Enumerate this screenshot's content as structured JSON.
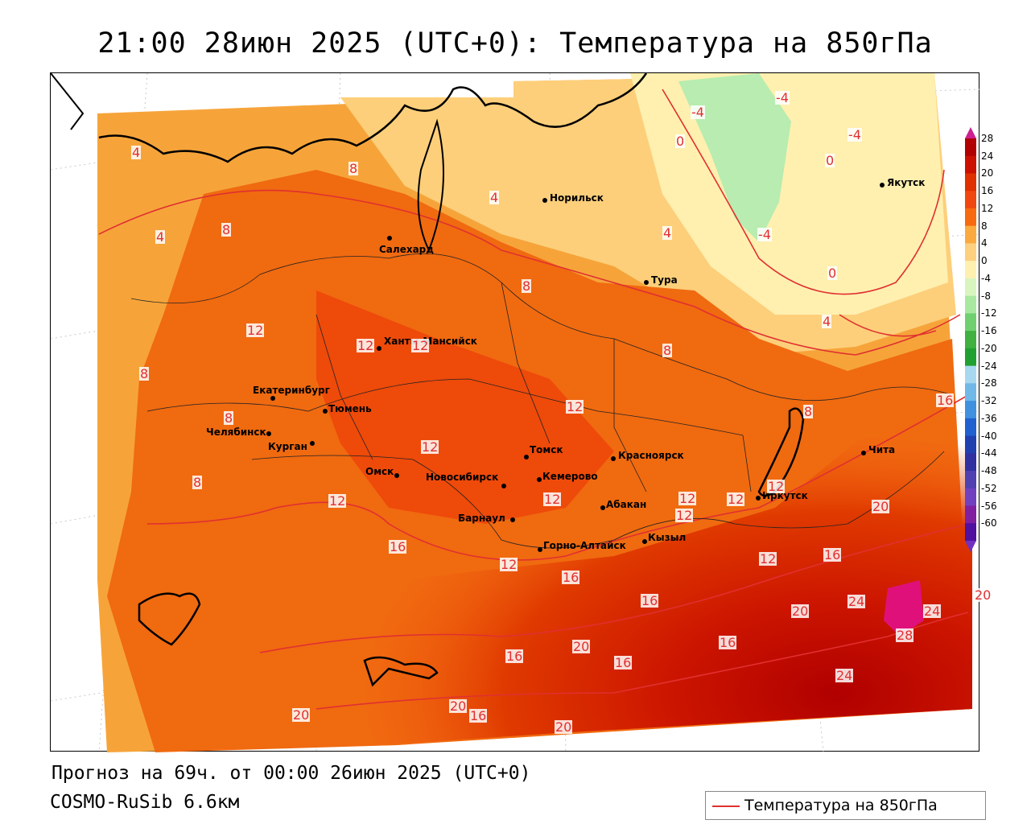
{
  "header": {
    "title": "21:00 28июн 2025 (UTC+0): Температура на 850гПа"
  },
  "footer": {
    "forecast": "Прогноз на 69ч. от 00:00 26июн 2025 (UTC+0)",
    "model": "COSMO-RuSib 6.6км"
  },
  "legend": {
    "label": "Температура на 850гПа",
    "line_color": "#e03030"
  },
  "colorbar": {
    "levels": [
      "28",
      "24",
      "20",
      "16",
      "12",
      "8",
      "4",
      "0",
      "-4",
      "-8",
      "-12",
      "-16",
      "-20",
      "-24",
      "-28",
      "-32",
      "-36",
      "-40",
      "-44",
      "-48",
      "-52",
      "-56",
      "-60"
    ],
    "colors": [
      "#b00000",
      "#cc1000",
      "#e03000",
      "#f04810",
      "#f86a10",
      "#fbaa40",
      "#fdd080",
      "#fff0b0",
      "#d8f5c0",
      "#a8e8a0",
      "#70d070",
      "#40b040",
      "#20a030",
      "#a8d8f0",
      "#70b8e8",
      "#4090e0",
      "#2060d0",
      "#2040b0",
      "#3030a0",
      "#5040b0",
      "#7040c0",
      "#8020a0",
      "#5010a0"
    ],
    "top_arrow_color": "#cc2090",
    "bottom_arrow_color": "#7030c0"
  },
  "cities": [
    {
      "name": "Норильск"
    },
    {
      "name": "Якутск"
    },
    {
      "name": "Салехард"
    },
    {
      "name": "Тура"
    },
    {
      "name": "Ханты-Мансийск"
    },
    {
      "name": "Екатеринбург"
    },
    {
      "name": "Тюмень"
    },
    {
      "name": "Челябинск"
    },
    {
      "name": "Курган"
    },
    {
      "name": "Омск"
    },
    {
      "name": "Новосибирск"
    },
    {
      "name": "Томск"
    },
    {
      "name": "Кемерово"
    },
    {
      "name": "Красноярск"
    },
    {
      "name": "Барнаул"
    },
    {
      "name": "Абакан"
    },
    {
      "name": "Горно-Алтайск"
    },
    {
      "name": "Кызыл"
    },
    {
      "name": "Иркутск"
    },
    {
      "name": "Чита"
    }
  ],
  "isotherm_labels": [
    "-4",
    "-4",
    "-4",
    "-4",
    "0",
    "0",
    "0",
    "4",
    "4",
    "4",
    "4",
    "4",
    "8",
    "8",
    "8",
    "8",
    "8",
    "8",
    "8",
    "8",
    "12",
    "12",
    "12",
    "12",
    "12",
    "12",
    "12",
    "12",
    "12",
    "12",
    "12",
    "16",
    "16",
    "16",
    "16",
    "16",
    "16",
    "16",
    "16",
    "16",
    "20",
    "20",
    "20",
    "20",
    "20",
    "20",
    "24",
    "24",
    "24",
    "28",
    "12",
    "12",
    "20"
  ]
}
